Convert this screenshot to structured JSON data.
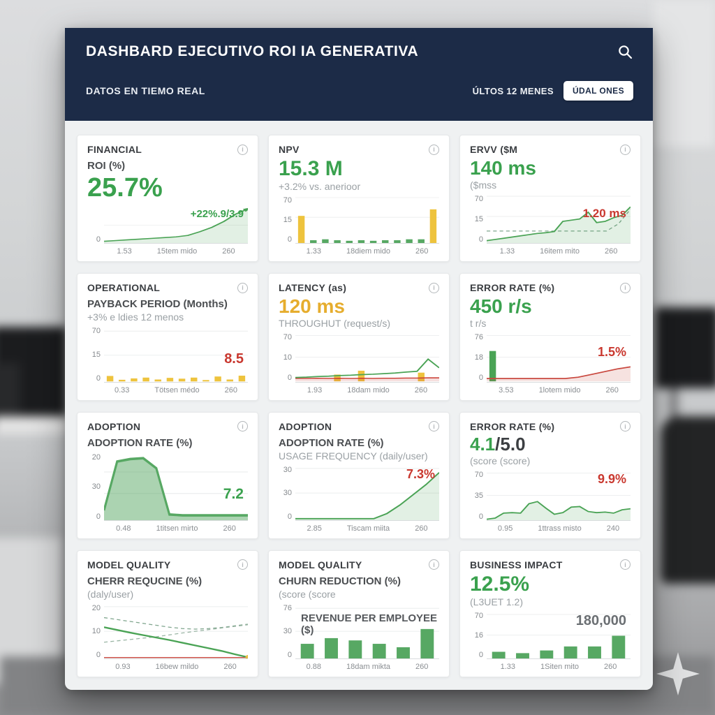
{
  "header": {
    "title": "DASHBARD EJECUTIVO ROI IA GENERATIVA",
    "subtitle": "DATOS EN TIEMO REAL",
    "period_label": "ÚLTOS 12 MENES",
    "action_button": "ÚDAL ONES"
  },
  "colors": {
    "navy": "#1c2b47",
    "green": "#3aa14e",
    "yellow": "#e6ad2e",
    "red": "#c9382f",
    "gray_ann": "#6b6f73"
  },
  "cards": [
    {
      "category": "FINANCIAL",
      "label": "ROI (%)",
      "value": "25.7%",
      "value_color": "#3aa14e",
      "value_size": 38,
      "annotation": {
        "text": "+22%.9/3.9",
        "color": "#3aa14e",
        "pos": "top",
        "size": 15
      },
      "y_ticks": [
        "0"
      ],
      "x_ticks": [
        "1.53",
        "15tem mido",
        "260"
      ],
      "chart": {
        "ylim": [
          0,
          50
        ],
        "grid": [
          0.5
        ],
        "series": [
          {
            "type": "line",
            "color": "#4aa355",
            "fill": true,
            "width": 2.4,
            "arrow": true,
            "values": [
              3,
              4,
              5,
              6,
              7,
              8,
              9,
              11,
              16,
              22,
              30,
              40,
              47
            ]
          }
        ]
      }
    },
    {
      "category": "NPV",
      "value": "15.3 M",
      "value_color": "#3aa14e",
      "value_size": 30,
      "sub": "+3.2% vs. anerioor",
      "y_ticks": [
        "70",
        "15",
        "0"
      ],
      "x_ticks": [
        "1.33",
        "18diem mido",
        "260"
      ],
      "chart": {
        "ylim": [
          0,
          25
        ],
        "grid": [
          0.03,
          0.45
        ],
        "series": [
          {
            "type": "bars",
            "color": "#57a863",
            "bar_colors": [
              "#eec33d",
              null,
              null,
              null,
              null,
              null,
              null,
              null,
              null,
              null,
              null,
              "#eec33d"
            ],
            "values": [
              14.5,
              1.5,
              2,
              1.5,
              1.2,
              1.5,
              1.2,
              1.5,
              1.5,
              2,
              2,
              18
            ]
          }
        ]
      }
    },
    {
      "category": "ERVV ($M",
      "value": "140 ms",
      "value_color": "#3aa14e",
      "value_size": 28,
      "sub": "($mss",
      "annotation": {
        "text": "1.20 ms",
        "color": "#c9382f",
        "pos": "mid",
        "size": 17
      },
      "y_ticks": [
        "70",
        "15",
        "0"
      ],
      "x_ticks": [
        "1.33",
        "16item mito",
        "260"
      ],
      "chart": {
        "ylim": [
          0,
          20
        ],
        "grid": [
          0.03,
          0.45
        ],
        "series": [
          {
            "type": "line",
            "color": "#7fa58d",
            "dash": true,
            "width": 1.4,
            "values": [
              5,
              5,
              5,
              5,
              5,
              5,
              5,
              5,
              5,
              5,
              5,
              8,
              14
            ]
          },
          {
            "type": "line",
            "color": "#4aa355",
            "fill": true,
            "width": 2,
            "values": [
              1,
              1.5,
              2,
              2.5,
              3,
              3.5,
              4,
              4.3,
              4.8,
              9,
              9.5,
              10,
              12.8,
              8.5,
              9,
              10.5,
              11.5,
              15
            ]
          }
        ]
      }
    },
    {
      "category": "OPERATIONAL",
      "label": "PAYBACK PERIOD (Months)",
      "sub": "+3% e ldies 12 menos",
      "annotation": {
        "text": "8.5",
        "color": "#c9382f",
        "pos": "bottom",
        "size": 20
      },
      "y_ticks": [
        "70",
        "15",
        "0"
      ],
      "x_ticks": [
        "0.33",
        "Tötsen médo",
        "260"
      ],
      "chart": {
        "ylim": [
          0,
          20
        ],
        "grid": [
          0.08,
          0.52
        ],
        "series": [
          {
            "type": "bars",
            "color": "#eec33d",
            "values": [
              2,
              0.6,
              1.1,
              1.4,
              0.7,
              1.3,
              1,
              1.4,
              0.5,
              1.8,
              0.7,
              2.1
            ]
          }
        ]
      }
    },
    {
      "category": "LATENCY (as)",
      "value": "120 ms",
      "value_color": "#e6ad2e",
      "value_size": 28,
      "sub": "THROUGHUT (request/s)",
      "y_ticks": [
        "70",
        "10",
        "0"
      ],
      "x_ticks": [
        "1.93",
        "18dam mido",
        "260"
      ],
      "chart": {
        "ylim": [
          0,
          25
        ],
        "grid": [
          0.05,
          0.5
        ],
        "series": [
          {
            "type": "bars",
            "color": "#eec33d",
            "values": [
              0,
              0,
              0,
              3.5,
              0,
              5.5,
              0,
              0,
              0,
              0,
              4.5,
              0
            ]
          },
          {
            "type": "line",
            "color": "#c9382f",
            "fill": true,
            "width": 1.6,
            "values": [
              1.5,
              1.5,
              1.6,
              1.5,
              1.6,
              1.5,
              1.6,
              1.5,
              1.6,
              1.6,
              1.7,
              1.7,
              1.8,
              1.8
            ]
          },
          {
            "type": "line",
            "color": "#4aa355",
            "width": 2,
            "values": [
              2,
              2.2,
              2.5,
              2.7,
              3,
              3.2,
              3.5,
              3.7,
              4,
              4.3,
              4.8,
              5.2,
              11.5,
              7
            ]
          }
        ]
      }
    },
    {
      "category": "ERROR RATE (%)",
      "value": "450 r/s",
      "value_color": "#3aa14e",
      "value_size": 28,
      "sub": "t r/s",
      "annotation": {
        "text": "1.5%",
        "color": "#c9382f",
        "pos": "mid",
        "size": 18
      },
      "y_ticks": [
        "76",
        "18",
        "0"
      ],
      "x_ticks": [
        "3.53",
        "1lotem mido",
        "260"
      ],
      "chart": {
        "ylim": [
          0,
          35
        ],
        "grid": [
          0.05,
          0.5
        ],
        "series": [
          {
            "type": "bars",
            "color": "#4aa355",
            "values": [
              22,
              0,
              0,
              0,
              0,
              0,
              0,
              0,
              0,
              0,
              0,
              0
            ]
          },
          {
            "type": "line",
            "color": "#c9483f",
            "fill": true,
            "width": 2,
            "values": [
              2,
              2,
              2,
              2,
              2,
              2,
              2,
              3,
              5,
              7,
              9,
              10.5
            ]
          }
        ]
      }
    },
    {
      "category": "ADOPTION",
      "label": "ADOPTION RATE (%)",
      "annotation": {
        "text": "7.2",
        "color": "#3aa14e",
        "pos": "bottom",
        "size": 21
      },
      "y_ticks": [
        "20",
        "30",
        "0"
      ],
      "x_ticks": [
        "0.48",
        "1titsen mirto",
        "260"
      ],
      "chart": {
        "ylim": [
          0,
          40
        ],
        "grid": [
          0.28,
          0.6
        ],
        "series": [
          {
            "type": "line",
            "color": "#57a863",
            "fill": true,
            "fill_opacity": 0.5,
            "width": 3,
            "values": [
              6,
              35,
              36.5,
              37,
              31,
              3.5,
              3,
              3,
              3,
              3,
              3,
              3
            ]
          }
        ]
      }
    },
    {
      "category": "ADOPTION",
      "label": "ADOPTION RATE (%)",
      "sub": "USAGE FREQUENCY (daily/user)",
      "annotation": {
        "text": "7.3%",
        "color": "#c9382f",
        "pos": "top",
        "size": 18
      },
      "y_ticks": [
        "30",
        "30",
        "0"
      ],
      "x_ticks": [
        "2.85",
        "Tiscam miita",
        "260"
      ],
      "chart": {
        "ylim": [
          0,
          32
        ],
        "grid": [
          0.05,
          0.5
        ],
        "series": [
          {
            "type": "line",
            "color": "#4aa355",
            "fill": true,
            "width": 2,
            "values": [
              1,
              1,
              1,
              1,
              1,
              1,
              1,
              4,
              9,
              15,
              21,
              28
            ]
          }
        ]
      }
    },
    {
      "category": "ERROR RATE (%)",
      "value": "4.1",
      "value_suffix": "/5.0",
      "value_color": "#3aa14e",
      "value_size": 26,
      "sub": "(score (score)",
      "annotation": {
        "text": "9.9%",
        "color": "#c9382f",
        "pos": "top",
        "size": 18
      },
      "y_ticks": [
        "70",
        "35",
        "0"
      ],
      "x_ticks": [
        "0.95",
        "1ttrass misto",
        "240"
      ],
      "chart": {
        "ylim": [
          0,
          45
        ],
        "grid": [
          0.05,
          0.5
        ],
        "series": [
          {
            "type": "line",
            "color": "#4aa355",
            "fill": true,
            "width": 2,
            "values": [
              1,
              2,
              6.5,
              7,
              6.5,
              15,
              17,
              11,
              5.5,
              7,
              12,
              12.5,
              8,
              7,
              7.5,
              6.5,
              9.5,
              10.5
            ]
          }
        ]
      }
    },
    {
      "category": "MODEL QUALITY",
      "label": "CHERR REQUCINE (%)",
      "sub": "(daly/user)",
      "y_ticks": [
        "20",
        "10",
        "0"
      ],
      "x_ticks": [
        "0.93",
        "16bew mildo",
        "260"
      ],
      "chart": {
        "ylim": [
          0,
          20
        ],
        "grid": [
          0.05,
          0.5
        ],
        "series": [
          {
            "type": "line",
            "color": "#7fa58d",
            "dash": true,
            "width": 1.3,
            "values": [
              15,
              14.3,
              13.6,
              12.9,
              12.2,
              11.5,
              11,
              10.8,
              11,
              11.4,
              12,
              12.6
            ]
          },
          {
            "type": "line",
            "color": "#9ab5a4",
            "dash": true,
            "width": 1.3,
            "values": [
              6,
              6.5,
              7,
              7.5,
              8,
              8.7,
              9.4,
              10,
              10.6,
              11.2,
              11.8,
              12.4
            ]
          },
          {
            "type": "line",
            "color": "#c9483f",
            "width": 1.5,
            "values": [
              0.4,
              0.4,
              0.4,
              0.4,
              0.4,
              0.4,
              0.4,
              0.4,
              0.4,
              0.4,
              0.4,
              0.4
            ]
          },
          {
            "type": "line",
            "color": "#4aa355",
            "width": 2.4,
            "end_dot": "#e6b93f",
            "values": [
              11.5,
              10.5,
              9.5,
              8.6,
              7.7,
              6.8,
              5.8,
              4.8,
              3.8,
              2.8,
              1.6,
              0.5
            ]
          }
        ]
      }
    },
    {
      "category": "MODEL QUALITY",
      "label": "CHURN REDUCTION (%)",
      "sub": "(score (score",
      "chart_label": "REVENUE PER EMPLOYEE ($)",
      "y_ticks": [
        "76",
        "30",
        "0"
      ],
      "x_ticks": [
        "0.88",
        "18dam mikta",
        "260"
      ],
      "chart": {
        "ylim": [
          0,
          48
        ],
        "grid": [
          0.08,
          0.5
        ],
        "series": [
          {
            "type": "bars",
            "color": "#57a863",
            "values": [
              13,
              18,
              16,
              13,
              10,
              26
            ]
          }
        ]
      }
    },
    {
      "category": "BUSINESS IMPACT",
      "value": "12.5%",
      "value_color": "#3aa14e",
      "value_size": 30,
      "sub": "(L3UET 1.2)",
      "annotation": {
        "text": "180,000",
        "color": "#6b6f73",
        "pos": "top",
        "size": 20
      },
      "y_ticks": [
        "70",
        "16",
        "0"
      ],
      "x_ticks": [
        "1.33",
        "1Siten mito",
        "260"
      ],
      "chart": {
        "ylim": [
          0,
          35
        ],
        "grid": [
          0.06,
          0.5
        ],
        "series": [
          {
            "type": "bars",
            "color": "#57a863",
            "values": [
              5,
              4,
              6,
              9,
              9,
              17
            ]
          }
        ]
      }
    }
  ]
}
